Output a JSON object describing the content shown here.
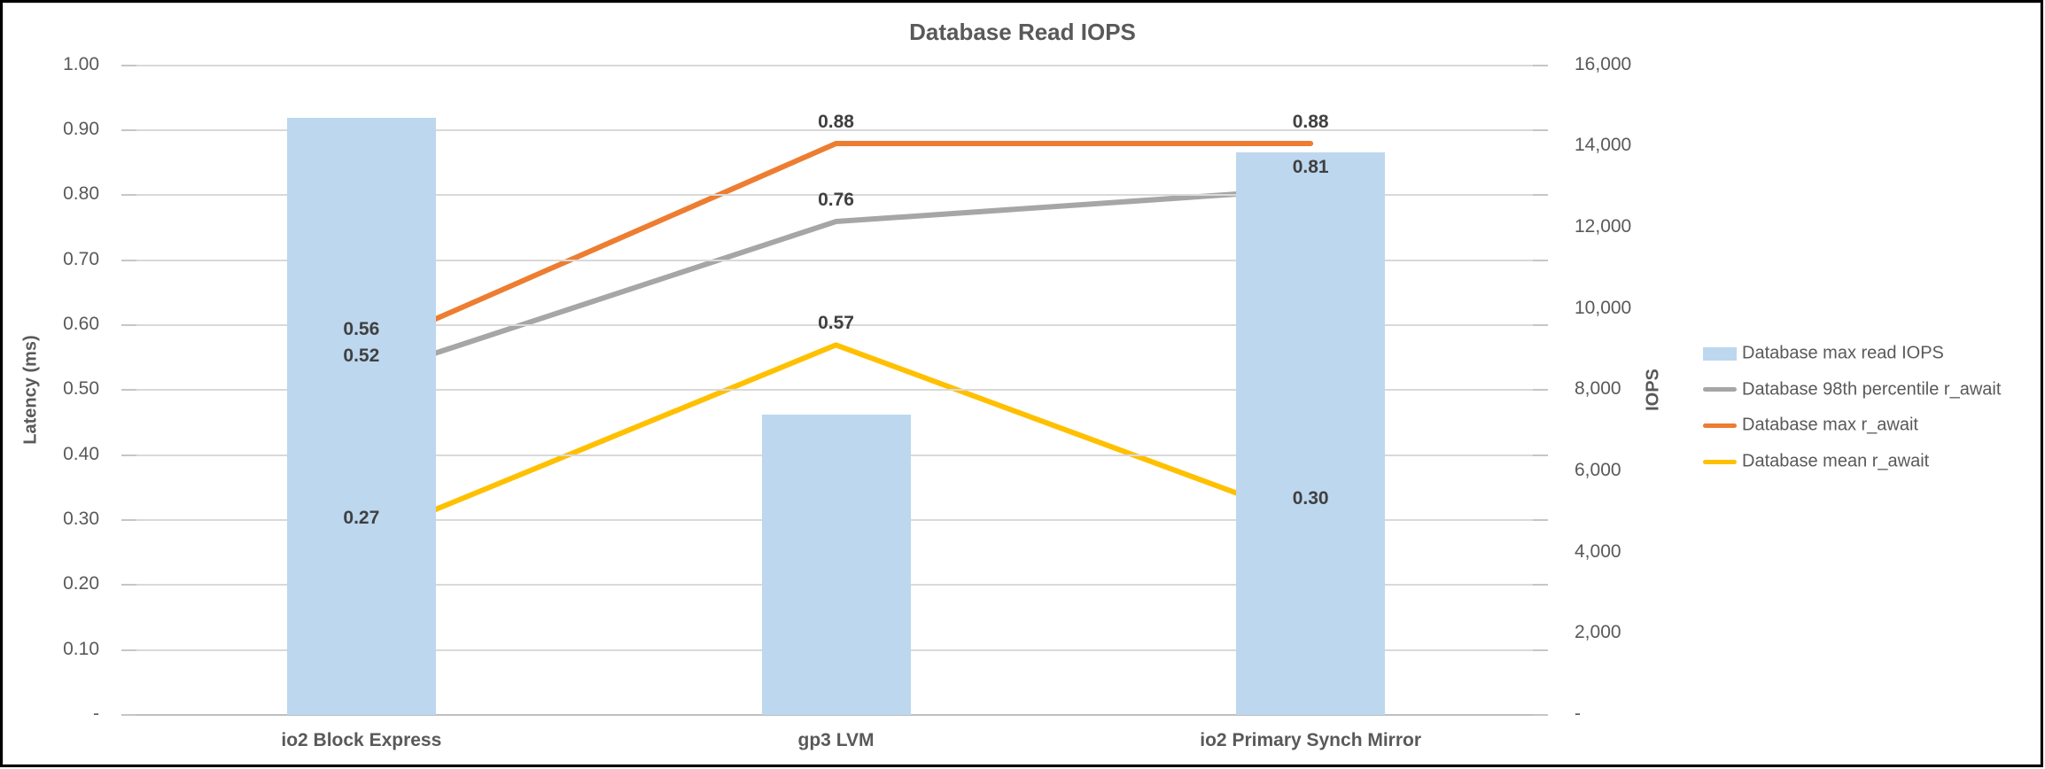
{
  "chart_data": {
    "type": "combo",
    "title": "Database Read IOPS",
    "categories": [
      "io2 Block Express",
      "gp3 LVM",
      "io2 Primary Synch Mirror"
    ],
    "bar_series": {
      "name": "Database max read IOPS",
      "axis": "right",
      "color": "#BDD7EE",
      "values": [
        14700,
        7400,
        13850
      ]
    },
    "line_series": [
      {
        "name": "Database 98th percentile r_await",
        "axis": "left",
        "color": "#A6A6A6",
        "values": [
          0.52,
          0.76,
          0.81
        ],
        "data_labels": [
          "0.52",
          "0.76",
          "0.81"
        ]
      },
      {
        "name": "Database max r_await",
        "axis": "left",
        "color": "#ED7D31",
        "values": [
          0.56,
          0.88,
          0.88
        ],
        "data_labels": [
          "0.56",
          "0.88",
          "0.88"
        ]
      },
      {
        "name": "Database mean r_await",
        "axis": "left",
        "color": "#FFC000",
        "values": [
          0.27,
          0.57,
          0.3
        ],
        "data_labels": [
          "0.27",
          "0.57",
          "0.30"
        ]
      }
    ],
    "left_axis": {
      "title": "Latency (ms)",
      "min": 0,
      "max": 1.0,
      "ticks": [
        "1.00",
        "0.90",
        "0.80",
        "0.70",
        "0.60",
        "0.50",
        "0.40",
        "0.30",
        "0.20",
        "0.10",
        "-"
      ]
    },
    "right_axis": {
      "title": "IOPS",
      "min": 0,
      "max": 16000,
      "ticks": [
        "16,000",
        "14,000",
        "12,000",
        "10,000",
        "8,000",
        "6,000",
        "4,000",
        "2,000",
        "-"
      ]
    },
    "grid": true,
    "legend_position": "right",
    "colors": {
      "gridline": "#D9D9D9",
      "zero_line": "#BFBFBF",
      "text": "#595959",
      "data_label_text": "#404040"
    }
  }
}
